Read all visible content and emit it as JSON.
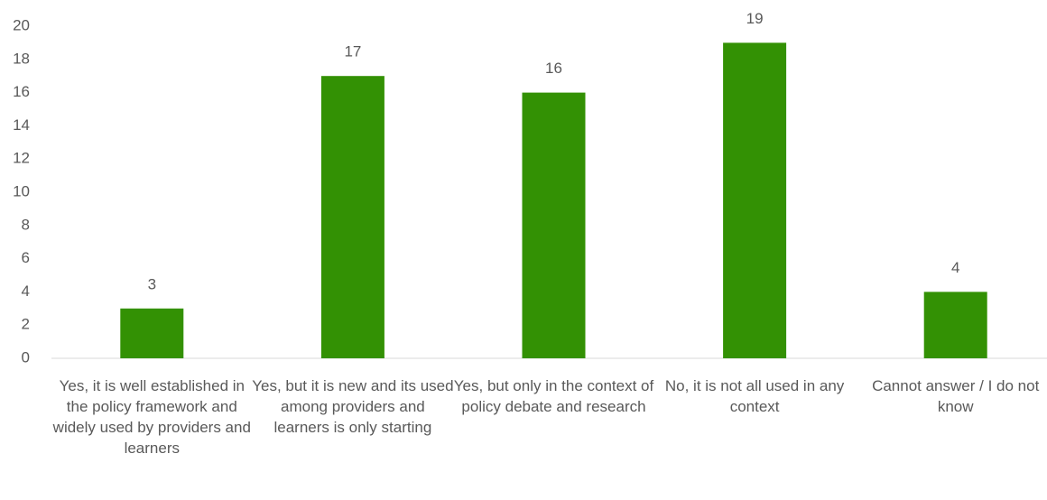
{
  "chart_data": {
    "type": "bar",
    "categories": [
      "Yes, it is well established in the policy framework and widely used by providers and learners",
      "Yes, but it is new and its used among providers and learners is only starting",
      "Yes, but only in the context of policy debate and research",
      "No, it is not all used in any context",
      "Cannot answer / I do not know"
    ],
    "values": [
      3,
      17,
      16,
      19,
      4
    ],
    "color": "#339104",
    "ylim": [
      0,
      20
    ],
    "yticks": [
      0,
      2,
      4,
      6,
      8,
      10,
      12,
      14,
      16,
      18,
      20
    ],
    "grid": false
  }
}
